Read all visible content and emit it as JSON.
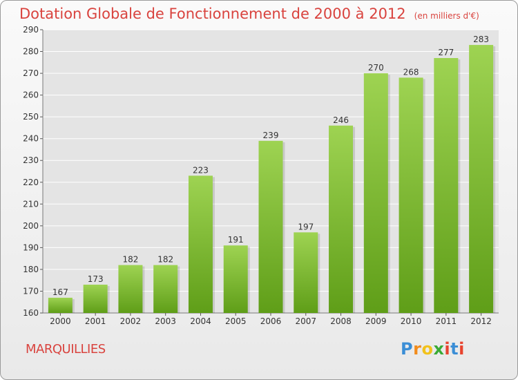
{
  "title": "Dotation Globale de Fonctionnement de 2000 à 2012",
  "unit_note": "(en milliers d'€)",
  "commune": "MARQUILLIES",
  "logo": {
    "letters": [
      "P",
      "r",
      "o",
      "x",
      "i",
      "t",
      "i"
    ],
    "colors": [
      "#3b8ed6",
      "#f28c1c",
      "#f2c21c",
      "#3aaa35",
      "#e8432e",
      "#3b8ed6",
      "#e8432e"
    ]
  },
  "colors": {
    "title": "#d9433e",
    "bar_top": "#9ed352",
    "bar_bottom": "#5f9e18",
    "grid": "#ffffff"
  },
  "chart_data": {
    "type": "bar",
    "categories": [
      "2000",
      "2001",
      "2002",
      "2003",
      "2004",
      "2005",
      "2006",
      "2007",
      "2008",
      "2009",
      "2010",
      "2011",
      "2012"
    ],
    "values": [
      167,
      173,
      182,
      182,
      223,
      191,
      239,
      197,
      246,
      270,
      268,
      277,
      283
    ],
    "yticks": [
      160,
      170,
      180,
      190,
      200,
      210,
      220,
      230,
      240,
      250,
      260,
      270,
      280,
      290
    ],
    "ylim": [
      160,
      290
    ],
    "grid": true
  }
}
